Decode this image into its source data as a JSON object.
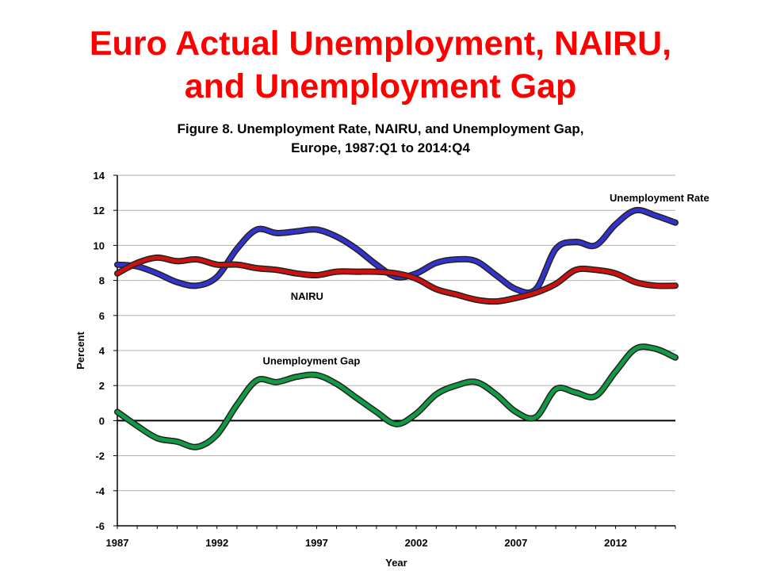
{
  "slide": {
    "title_line1": "Euro Actual Unemployment, NAIRU,",
    "title_line2": "and Unemployment Gap",
    "title_color": "#ff0000"
  },
  "chart_data": {
    "type": "line",
    "title_line1": "Figure 8. Unemployment Rate, NAIRU, and Unemployment Gap,",
    "title_line2": "Europe, 1987:Q1 to 2014:Q4",
    "xlabel": "Year",
    "ylabel": "Percent",
    "xlim": [
      1987,
      2015
    ],
    "ylim": [
      -6,
      14
    ],
    "x_ticks": [
      1987,
      1992,
      1997,
      2002,
      2007,
      2012
    ],
    "y_ticks": [
      14,
      12,
      10,
      8,
      6,
      4,
      2,
      0,
      -2,
      -4,
      -6
    ],
    "grid": "horizontal",
    "legend": "none",
    "zero_line": 0,
    "annotations": [
      {
        "text": "Unemployment Rate",
        "x": 2011.7,
        "y": 12.5
      },
      {
        "text": "NAIRU",
        "x": 1995.7,
        "y": 6.9
      },
      {
        "text": "Unemployment Gap",
        "x": 1994.3,
        "y": 3.2
      }
    ],
    "series": [
      {
        "name": "Unemployment Rate",
        "color": "#3333cc",
        "x": [
          1987,
          1988,
          1989,
          1990,
          1991,
          1992,
          1993,
          1994,
          1995,
          1996,
          1997,
          1998,
          1999,
          2000,
          2001,
          2002,
          2003,
          2004,
          2005,
          2006,
          2007,
          2008,
          2009,
          2010,
          2011,
          2012,
          2013,
          2014,
          2015
        ],
        "values": [
          8.9,
          8.8,
          8.4,
          7.9,
          7.7,
          8.2,
          9.8,
          10.9,
          10.7,
          10.8,
          10.9,
          10.5,
          9.8,
          8.9,
          8.2,
          8.4,
          9.0,
          9.2,
          9.1,
          8.3,
          7.5,
          7.5,
          9.8,
          10.2,
          10.0,
          11.2,
          12.0,
          11.7,
          11.3
        ]
      },
      {
        "name": "NAIRU",
        "color": "#cc1111",
        "x": [
          1987,
          1988,
          1989,
          1990,
          1991,
          1992,
          1993,
          1994,
          1995,
          1996,
          1997,
          1998,
          1999,
          2000,
          2001,
          2002,
          2003,
          2004,
          2005,
          2006,
          2007,
          2008,
          2009,
          2010,
          2011,
          2012,
          2013,
          2014,
          2015
        ],
        "values": [
          8.4,
          9.0,
          9.3,
          9.1,
          9.2,
          8.9,
          8.9,
          8.7,
          8.6,
          8.4,
          8.3,
          8.5,
          8.5,
          8.5,
          8.4,
          8.1,
          7.5,
          7.2,
          6.9,
          6.8,
          7.0,
          7.3,
          7.8,
          8.6,
          8.6,
          8.4,
          7.9,
          7.7,
          7.7
        ]
      },
      {
        "name": "Unemployment Gap",
        "color": "#119944",
        "x": [
          1987,
          1988,
          1989,
          1990,
          1991,
          1992,
          1993,
          1994,
          1995,
          1996,
          1997,
          1998,
          1999,
          2000,
          2001,
          2002,
          2003,
          2004,
          2005,
          2006,
          2007,
          2008,
          2009,
          2010,
          2011,
          2012,
          2013,
          2014,
          2015
        ],
        "values": [
          0.5,
          -0.3,
          -1.0,
          -1.2,
          -1.5,
          -0.8,
          0.9,
          2.3,
          2.2,
          2.5,
          2.6,
          2.1,
          1.3,
          0.5,
          -0.2,
          0.4,
          1.5,
          2.0,
          2.2,
          1.5,
          0.5,
          0.2,
          1.8,
          1.6,
          1.4,
          2.8,
          4.1,
          4.1,
          3.6
        ]
      }
    ]
  }
}
